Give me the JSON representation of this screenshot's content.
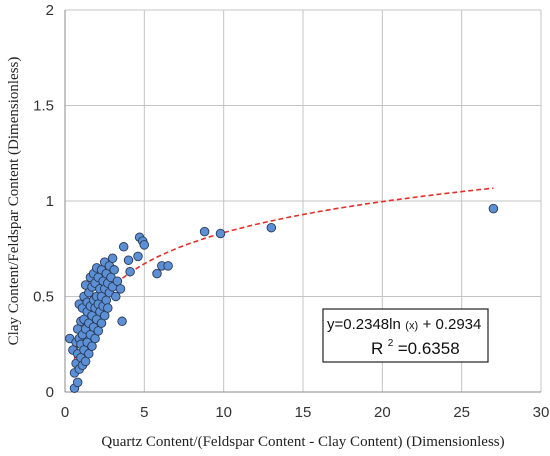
{
  "chart_data": {
    "type": "scatter",
    "xlabel": "Quartz Content/(Feldspar Content - Clay Content) (Dimensionless)",
    "ylabel": "Clay Content/Feldspar Content (Dimensionless)",
    "xlim": [
      0,
      30
    ],
    "ylim": [
      0,
      2
    ],
    "xticks": [
      "0",
      "5",
      "10",
      "15",
      "20",
      "25",
      "30"
    ],
    "yticks": [
      "0",
      "0.5",
      "1",
      "1.5",
      "2"
    ],
    "grid": true,
    "legend": "none",
    "point_color": "#5b8fd6",
    "point_edge_color": "#2b3a55",
    "trendline_color": "#e0302a",
    "trendline": {
      "type": "logarithmic",
      "a": 0.2348,
      "b": 0.2934,
      "x_range": [
        0.6,
        27
      ],
      "equation_parts": [
        "y=0.2348ln",
        "(x)",
        "+ 0.2934"
      ],
      "r2_parts": [
        "R",
        "2",
        "=0.6358"
      ],
      "box_position": "lower-right"
    },
    "points": [
      [
        0.3,
        0.28
      ],
      [
        0.5,
        0.22
      ],
      [
        0.6,
        0.02
      ],
      [
        0.6,
        0.1
      ],
      [
        0.7,
        0.15
      ],
      [
        0.7,
        0.26
      ],
      [
        0.8,
        0.05
      ],
      [
        0.8,
        0.2
      ],
      [
        0.8,
        0.33
      ],
      [
        0.9,
        0.12
      ],
      [
        0.9,
        0.28
      ],
      [
        0.9,
        0.46
      ],
      [
        1.0,
        0.18
      ],
      [
        1.0,
        0.37
      ],
      [
        1.0,
        0.25
      ],
      [
        1.1,
        0.3
      ],
      [
        1.1,
        0.14
      ],
      [
        1.1,
        0.44
      ],
      [
        1.2,
        0.22
      ],
      [
        1.2,
        0.38
      ],
      [
        1.2,
        0.5
      ],
      [
        1.3,
        0.16
      ],
      [
        1.3,
        0.33
      ],
      [
        1.3,
        0.56
      ],
      [
        1.4,
        0.26
      ],
      [
        1.4,
        0.42
      ],
      [
        1.4,
        0.47
      ],
      [
        1.5,
        0.2
      ],
      [
        1.5,
        0.36
      ],
      [
        1.5,
        0.52
      ],
      [
        1.6,
        0.3
      ],
      [
        1.6,
        0.45
      ],
      [
        1.6,
        0.6
      ],
      [
        1.7,
        0.24
      ],
      [
        1.7,
        0.4
      ],
      [
        1.7,
        0.55
      ],
      [
        1.8,
        0.34
      ],
      [
        1.8,
        0.48
      ],
      [
        1.8,
        0.62
      ],
      [
        1.9,
        0.28
      ],
      [
        1.9,
        0.44
      ],
      [
        1.9,
        0.57
      ],
      [
        2.0,
        0.38
      ],
      [
        2.0,
        0.5
      ],
      [
        2.0,
        0.65
      ],
      [
        2.1,
        0.32
      ],
      [
        2.1,
        0.46
      ],
      [
        2.1,
        0.6
      ],
      [
        2.2,
        0.42
      ],
      [
        2.2,
        0.54
      ],
      [
        2.3,
        0.36
      ],
      [
        2.3,
        0.5
      ],
      [
        2.3,
        0.64
      ],
      [
        2.4,
        0.45
      ],
      [
        2.4,
        0.58
      ],
      [
        2.5,
        0.4
      ],
      [
        2.5,
        0.54
      ],
      [
        2.5,
        0.68
      ],
      [
        2.6,
        0.48
      ],
      [
        2.6,
        0.62
      ],
      [
        2.7,
        0.44
      ],
      [
        2.7,
        0.57
      ],
      [
        2.8,
        0.52
      ],
      [
        2.8,
        0.66
      ],
      [
        2.9,
        0.6
      ],
      [
        3.0,
        0.55
      ],
      [
        3.0,
        0.7
      ],
      [
        3.1,
        0.64
      ],
      [
        3.2,
        0.5
      ],
      [
        3.3,
        0.58
      ],
      [
        3.5,
        0.54
      ],
      [
        3.6,
        0.37
      ],
      [
        3.7,
        0.76
      ],
      [
        4.0,
        0.69
      ],
      [
        4.1,
        0.63
      ],
      [
        4.6,
        0.71
      ],
      [
        4.7,
        0.81
      ],
      [
        4.9,
        0.79
      ],
      [
        5.0,
        0.77
      ],
      [
        5.8,
        0.62
      ],
      [
        6.1,
        0.66
      ],
      [
        6.5,
        0.66
      ],
      [
        8.8,
        0.84
      ],
      [
        9.8,
        0.83
      ],
      [
        13.0,
        0.86
      ],
      [
        27.0,
        0.96
      ]
    ]
  }
}
